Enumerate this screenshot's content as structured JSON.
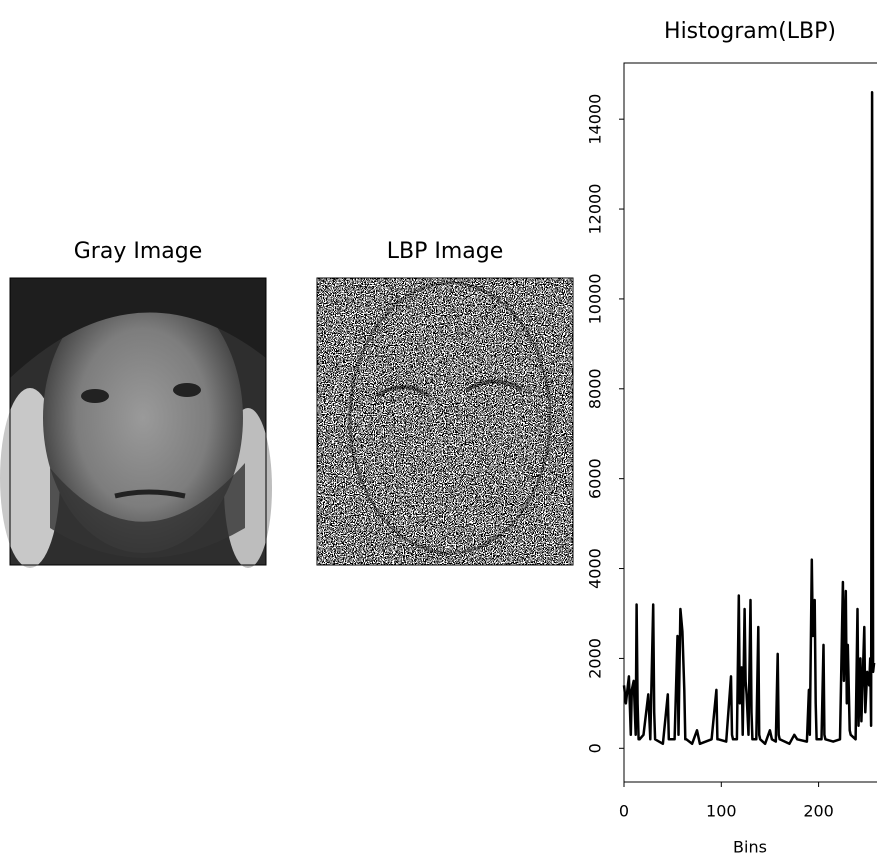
{
  "chart_data": [
    {
      "type": "image",
      "title": "Gray Image",
      "style": "gray"
    },
    {
      "type": "image",
      "title": "LBP Image",
      "style": "lbp"
    },
    {
      "type": "line",
      "title": "Histogram(LBP)",
      "xlabel": "Bins",
      "color": "#000000",
      "x": [
        0,
        2,
        5,
        7,
        8,
        10,
        12,
        13,
        14,
        15,
        16,
        20,
        25,
        27,
        30,
        31,
        32,
        40,
        45,
        46,
        48,
        52,
        55,
        56,
        58,
        60,
        62,
        63,
        64,
        70,
        75,
        78,
        90,
        95,
        96,
        97,
        105,
        110,
        111,
        112,
        116,
        118,
        119,
        121,
        122,
        124,
        125,
        126,
        128,
        130,
        131,
        132,
        136,
        138,
        139,
        140,
        145,
        150,
        152,
        156,
        158,
        159,
        160,
        170,
        175,
        178,
        188,
        190,
        191,
        193,
        194,
        196,
        197,
        198,
        203,
        205,
        206,
        207,
        215,
        222,
        225,
        226,
        228,
        229,
        230,
        232,
        233,
        238,
        240,
        241,
        243,
        244,
        247,
        248,
        250,
        252,
        253,
        254,
        255,
        256,
        257
      ],
      "values": [
        1400,
        1000,
        1600,
        300,
        1300,
        1500,
        300,
        3200,
        1000,
        200,
        200,
        300,
        1200,
        200,
        3200,
        800,
        200,
        100,
        1200,
        200,
        200,
        200,
        2500,
        300,
        3100,
        2600,
        1300,
        200,
        200,
        100,
        400,
        100,
        200,
        1300,
        200,
        200,
        150,
        1600,
        300,
        200,
        200,
        3400,
        1000,
        1800,
        300,
        3100,
        1500,
        1200,
        300,
        3300,
        800,
        200,
        200,
        2700,
        300,
        200,
        100,
        400,
        200,
        150,
        2100,
        300,
        200,
        100,
        300,
        200,
        150,
        1300,
        300,
        4200,
        2500,
        3300,
        1000,
        200,
        200,
        2300,
        300,
        200,
        150,
        200,
        3700,
        1500,
        3500,
        1000,
        2300,
        400,
        300,
        200,
        3100,
        500,
        2000,
        600,
        2700,
        800,
        1700,
        1400,
        2000,
        500,
        14600,
        1700,
        1900
      ],
      "xlim": [
        0,
        259
      ],
      "ylim": [
        -750,
        15250
      ],
      "xticks": [
        0,
        100,
        200
      ],
      "yticks": [
        0,
        2000,
        4000,
        6000,
        8000,
        10000,
        12000,
        14000
      ]
    }
  ]
}
